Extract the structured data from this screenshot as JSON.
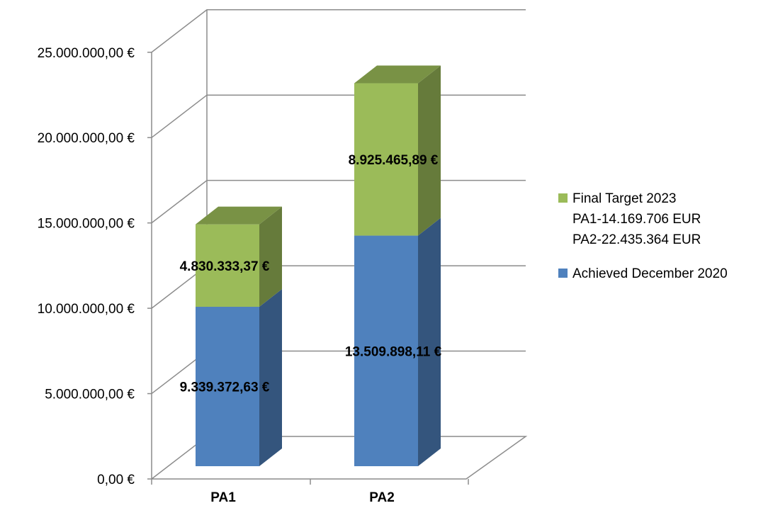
{
  "chart_data": {
    "type": "bar",
    "stacked": true,
    "three_d": true,
    "categories": [
      "PA1",
      "PA2"
    ],
    "series": [
      {
        "name": "Achieved December 2020",
        "color": "#4F81BD",
        "values": [
          9339372.63,
          13509898.11
        ],
        "labels": [
          "9.339.372,63 €",
          "13.509.898,11 €"
        ]
      },
      {
        "name": "Final Target 2023",
        "name_lines": [
          "Final Target 2023",
          "PA1-14.169.706 EUR",
          "PA2-22.435.364 EUR"
        ],
        "color": "#9BBB59",
        "values": [
          4830333.37,
          8925465.89
        ],
        "labels": [
          "4.830.333,37 €",
          "8.925.465,89 €"
        ]
      }
    ],
    "y_ticks": [
      0,
      5000000,
      10000000,
      15000000,
      20000000,
      25000000
    ],
    "y_tick_labels": [
      "0,00 €",
      "5.000.000,00 €",
      "10.000.000,00 €",
      "15.000.000,00 €",
      "20.000.000,00 €",
      "25.000.000,00 €"
    ],
    "ylim": [
      0,
      25000000
    ],
    "grid": true,
    "legend_position": "right",
    "title": "",
    "xlabel": "",
    "ylabel": ""
  }
}
